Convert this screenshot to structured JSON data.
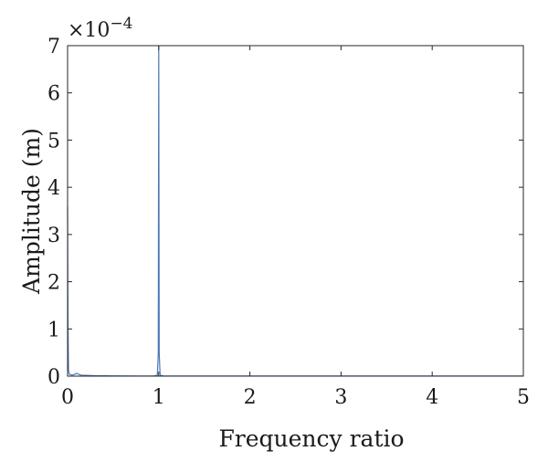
{
  "chart_data": {
    "type": "line",
    "title": "",
    "xlabel": "Frequency ratio",
    "ylabel": "Amplitude (m)",
    "y_exponent_label": "×10",
    "y_exponent_power": "−4",
    "xlim": [
      0,
      5
    ],
    "ylim": [
      0,
      7
    ],
    "x_ticks": [
      0,
      1,
      2,
      3,
      4,
      5
    ],
    "y_ticks": [
      0,
      1,
      2,
      3,
      4,
      5,
      6,
      7
    ],
    "x_tick_labels": [
      "0",
      "1",
      "2",
      "3",
      "4",
      "5"
    ],
    "y_tick_labels": [
      "0",
      "1",
      "2",
      "3",
      "4",
      "5",
      "6",
      "7"
    ],
    "grid": false,
    "series": [
      {
        "color": "#4a77b4",
        "x": [
          0,
          0.004,
          0.01,
          0.02,
          0.05,
          0.08,
          0.1,
          0.12,
          0.15,
          0.3,
          0.5,
          0.8,
          0.95,
          0.985,
          0.995,
          1.0,
          1.005,
          1.015,
          1.05,
          1.3,
          2.0,
          3.0,
          4.0,
          5.0
        ],
        "y": [
          3.6,
          1.2,
          0.12,
          0.04,
          0.02,
          0.04,
          0.06,
          0.04,
          0.02,
          0.01,
          0.006,
          0.004,
          0.005,
          0.02,
          0.5,
          7.0,
          0.5,
          0.02,
          0.005,
          0.003,
          0.002,
          0.002,
          0.002,
          0.002
        ]
      }
    ]
  }
}
